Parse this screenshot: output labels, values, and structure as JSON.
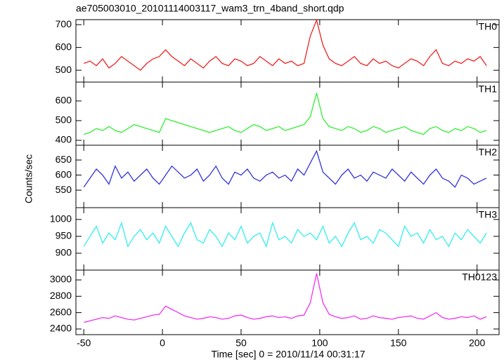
{
  "chart_data": [
    {
      "type": "line",
      "title": "ae705003010_20101114003117_wam3_trn_4band_short.qdp",
      "x": [
        -50,
        -46,
        -42,
        -38,
        -34,
        -30,
        -26,
        -22,
        -18,
        -14,
        -10,
        -6,
        -2,
        2,
        6,
        10,
        14,
        18,
        22,
        26,
        30,
        34,
        38,
        42,
        46,
        50,
        54,
        58,
        62,
        66,
        70,
        74,
        78,
        82,
        86,
        90,
        94,
        98,
        102,
        106,
        110,
        114,
        118,
        122,
        126,
        130,
        134,
        138,
        142,
        146,
        150,
        154,
        158,
        162,
        166,
        170,
        174,
        178,
        182,
        186,
        190,
        194,
        198,
        202,
        206
      ],
      "series": [
        {
          "name": "TH0",
          "color": "#ee2222",
          "values": [
            530,
            540,
            520,
            550,
            510,
            530,
            560,
            540,
            520,
            500,
            530,
            550,
            560,
            590,
            560,
            540,
            520,
            550,
            530,
            510,
            540,
            560,
            530,
            520,
            550,
            540,
            520,
            530,
            560,
            540,
            520,
            550,
            530,
            540,
            520,
            530,
            650,
            720,
            610,
            550,
            530,
            520,
            540,
            560,
            530,
            520,
            550,
            530,
            540,
            520,
            510,
            530,
            550,
            540,
            520,
            560,
            590,
            530,
            520,
            540,
            530,
            550,
            540,
            560,
            520
          ]
        }
      ],
      "xlim": [
        -55,
        214
      ],
      "xticks": [
        -50,
        0,
        50,
        100,
        150,
        200
      ],
      "ylim": [
        448,
        722
      ],
      "yticks": [
        500,
        600,
        700
      ]
    },
    {
      "type": "line",
      "x": [
        -50,
        -46,
        -42,
        -38,
        -34,
        -30,
        -26,
        -22,
        -18,
        -14,
        -10,
        -6,
        -2,
        2,
        6,
        10,
        14,
        18,
        22,
        26,
        30,
        34,
        38,
        42,
        46,
        50,
        54,
        58,
        62,
        66,
        70,
        74,
        78,
        82,
        86,
        90,
        94,
        98,
        102,
        106,
        110,
        114,
        118,
        122,
        126,
        130,
        134,
        138,
        142,
        146,
        150,
        154,
        158,
        162,
        166,
        170,
        174,
        178,
        182,
        186,
        190,
        194,
        198,
        202,
        206
      ],
      "series": [
        {
          "name": "TH1",
          "color": "#33ee33",
          "values": [
            430,
            440,
            460,
            450,
            470,
            450,
            440,
            460,
            480,
            470,
            460,
            450,
            440,
            510,
            500,
            490,
            480,
            470,
            460,
            450,
            440,
            450,
            460,
            470,
            450,
            440,
            460,
            480,
            470,
            450,
            460,
            470,
            450,
            460,
            470,
            480,
            520,
            640,
            510,
            470,
            460,
            450,
            470,
            460,
            440,
            450,
            470,
            460,
            440,
            450,
            460,
            470,
            450,
            440,
            430,
            460,
            470,
            450,
            440,
            460,
            450,
            470,
            460,
            440,
            450
          ]
        }
      ],
      "xlim": [
        -55,
        214
      ],
      "xticks": [
        -50,
        0,
        50,
        100,
        150,
        200
      ],
      "ylim": [
        375,
        696
      ],
      "yticks": [
        400,
        500,
        600
      ]
    },
    {
      "type": "line",
      "ylabel": "Counts/sec",
      "x": [
        -50,
        -46,
        -42,
        -38,
        -34,
        -30,
        -26,
        -22,
        -18,
        -14,
        -10,
        -6,
        -2,
        2,
        6,
        10,
        14,
        18,
        22,
        26,
        30,
        34,
        38,
        42,
        46,
        50,
        54,
        58,
        62,
        66,
        70,
        74,
        78,
        82,
        86,
        90,
        94,
        98,
        102,
        106,
        110,
        114,
        118,
        122,
        126,
        130,
        134,
        138,
        142,
        146,
        150,
        154,
        158,
        162,
        166,
        170,
        174,
        178,
        182,
        186,
        190,
        194,
        198,
        202,
        206
      ],
      "series": [
        {
          "name": "TH2",
          "color": "#3333dd",
          "values": [
            560,
            590,
            620,
            600,
            570,
            630,
            590,
            610,
            580,
            600,
            620,
            590,
            570,
            600,
            630,
            610,
            590,
            600,
            620,
            580,
            600,
            630,
            590,
            570,
            610,
            600,
            620,
            590,
            580,
            600,
            610,
            590,
            600,
            580,
            620,
            600,
            640,
            680,
            610,
            590,
            570,
            600,
            620,
            590,
            600,
            580,
            610,
            600,
            590,
            620,
            600,
            580,
            610,
            590,
            570,
            600,
            620,
            590,
            580,
            560,
            600,
            590,
            570,
            580,
            590
          ]
        }
      ],
      "xlim": [
        -55,
        214
      ],
      "xticks": [
        -50,
        0,
        50,
        100,
        150,
        200
      ],
      "ylim": [
        492,
        699
      ],
      "yticks": [
        550,
        600,
        650
      ]
    },
    {
      "type": "line",
      "x": [
        -50,
        -46,
        -42,
        -38,
        -34,
        -30,
        -26,
        -22,
        -18,
        -14,
        -10,
        -6,
        -2,
        2,
        6,
        10,
        14,
        18,
        22,
        26,
        30,
        34,
        38,
        42,
        46,
        50,
        54,
        58,
        62,
        66,
        70,
        74,
        78,
        82,
        86,
        90,
        94,
        98,
        102,
        106,
        110,
        114,
        118,
        122,
        126,
        130,
        134,
        138,
        142,
        146,
        150,
        154,
        158,
        162,
        166,
        170,
        174,
        178,
        182,
        186,
        190,
        194,
        198,
        202,
        206
      ],
      "series": [
        {
          "name": "TH3",
          "color": "#33eeee",
          "values": [
            920,
            950,
            980,
            930,
            960,
            940,
            990,
            920,
            950,
            970,
            940,
            960,
            930,
            980,
            950,
            920,
            960,
            990,
            940,
            930,
            970,
            950,
            920,
            960,
            940,
            980,
            930,
            950,
            960,
            920,
            990,
            940,
            950,
            930,
            970,
            950,
            960,
            940,
            980,
            930,
            950,
            920,
            960,
            990,
            940,
            950,
            930,
            970,
            960,
            940,
            920,
            980,
            950,
            960,
            930,
            970,
            940,
            950,
            920,
            960,
            940,
            970,
            950,
            930,
            960
          ]
        }
      ],
      "xlim": [
        -55,
        214
      ],
      "xticks": [
        -50,
        0,
        50,
        100,
        150,
        200
      ],
      "ylim": [
        850,
        1035
      ],
      "yticks": [
        900,
        950,
        1000
      ]
    },
    {
      "type": "line",
      "xlabel": "Time [sec] 0 = 2010/11/14 00:31:17",
      "x": [
        -50,
        -46,
        -42,
        -38,
        -34,
        -30,
        -26,
        -22,
        -18,
        -14,
        -10,
        -6,
        -2,
        2,
        6,
        10,
        14,
        18,
        22,
        26,
        30,
        34,
        38,
        42,
        46,
        50,
        54,
        58,
        62,
        66,
        70,
        74,
        78,
        82,
        86,
        90,
        94,
        98,
        102,
        106,
        110,
        114,
        118,
        122,
        126,
        130,
        134,
        138,
        142,
        146,
        150,
        154,
        158,
        162,
        166,
        170,
        174,
        178,
        182,
        186,
        190,
        194,
        198,
        202,
        206
      ],
      "series": [
        {
          "name": "TH0123",
          "color": "#ee33ee",
          "values": [
            2480,
            2500,
            2520,
            2540,
            2530,
            2560,
            2540,
            2520,
            2510,
            2530,
            2550,
            2570,
            2580,
            2680,
            2640,
            2600,
            2560,
            2540,
            2520,
            2530,
            2550,
            2540,
            2520,
            2530,
            2560,
            2570,
            2540,
            2520,
            2530,
            2550,
            2560,
            2540,
            2550,
            2530,
            2560,
            2570,
            2720,
            3080,
            2720,
            2580,
            2550,
            2530,
            2540,
            2560,
            2520,
            2530,
            2560,
            2540,
            2530,
            2520,
            2540,
            2550,
            2560,
            2530,
            2520,
            2560,
            2600,
            2540,
            2520,
            2530,
            2550,
            2540,
            2560,
            2520,
            2550
          ]
        }
      ],
      "xlim": [
        -55,
        214
      ],
      "xticks": [
        -50,
        0,
        50,
        100,
        150,
        200
      ],
      "ylim": [
        2331,
        3120
      ],
      "yticks": [
        2400,
        2600,
        2800,
        3000
      ]
    }
  ]
}
